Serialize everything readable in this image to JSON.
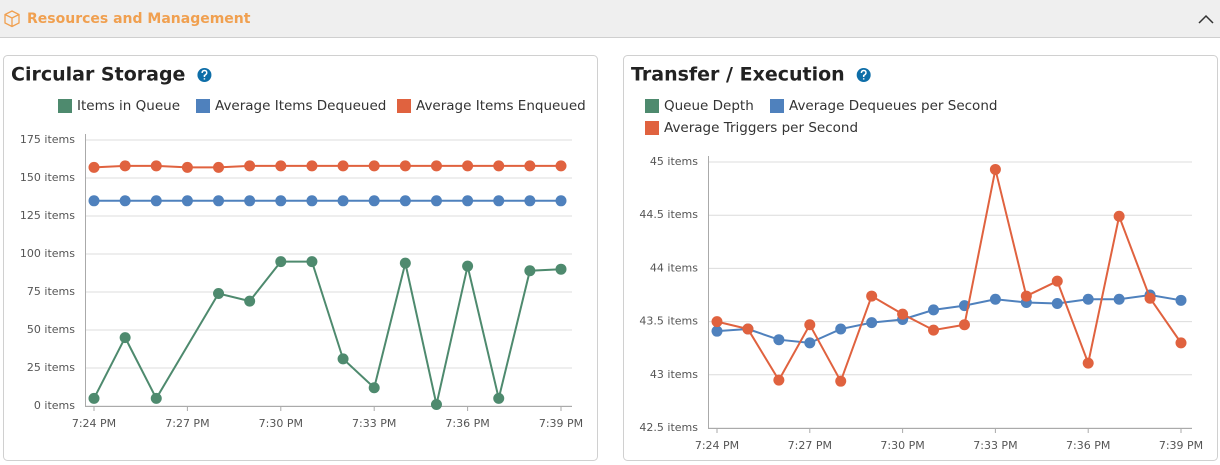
{
  "header": {
    "title": "Resources and Management"
  },
  "chart_data": [
    {
      "type": "line",
      "title": "Circular Storage",
      "categories": [
        "7:24 PM",
        null,
        null,
        "7:27 PM",
        null,
        null,
        "7:30 PM",
        null,
        null,
        "7:33 PM",
        null,
        null,
        "7:36 PM",
        null,
        null,
        "7:39 PM"
      ],
      "series": [
        {
          "name": "Items in Queue",
          "color": "#4e8a6e",
          "values": [
            5,
            45,
            5,
            null,
            74,
            69,
            95,
            95,
            31,
            12,
            94,
            1,
            92,
            5,
            89,
            90
          ]
        },
        {
          "name": "Average Items Dequeued",
          "color": "#4f81bd",
          "values": [
            135,
            135,
            135,
            135,
            135,
            135,
            135,
            135,
            135,
            135,
            135,
            135,
            135,
            135,
            135,
            135
          ]
        },
        {
          "name": "Average Items Enqueued",
          "color": "#e0623f",
          "values": [
            157,
            158,
            158,
            157,
            157,
            158,
            158,
            158,
            158,
            158,
            158,
            158,
            158,
            158,
            158,
            158
          ]
        }
      ],
      "ylim": [
        0,
        175
      ],
      "yticks": [
        {
          "value": 0,
          "label": "0 items"
        },
        {
          "value": 25,
          "label": "25 items"
        },
        {
          "value": 50,
          "label": "50 items"
        },
        {
          "value": 75,
          "label": "75 items"
        },
        {
          "value": 100,
          "label": "100 items"
        },
        {
          "value": 125,
          "label": "125 items"
        },
        {
          "value": 150,
          "label": "150 items"
        },
        {
          "value": 175,
          "label": "175 items"
        }
      ],
      "grid": true
    },
    {
      "type": "line",
      "title": "Transfer / Execution",
      "categories": [
        "7:24 PM",
        null,
        null,
        "7:27 PM",
        null,
        null,
        "7:30 PM",
        null,
        null,
        "7:33 PM",
        null,
        null,
        "7:36 PM",
        null,
        null,
        "7:39 PM"
      ],
      "series": [
        {
          "name": "Queue Depth",
          "color": "#4e8a6e",
          "values": [
            null,
            null,
            null,
            null,
            null,
            null,
            null,
            null,
            null,
            null,
            null,
            null,
            null,
            null,
            null,
            null
          ]
        },
        {
          "name": "Average Dequeues per Second",
          "color": "#4f81bd",
          "values": [
            43.41,
            43.43,
            43.33,
            43.3,
            43.43,
            43.49,
            43.52,
            43.61,
            43.65,
            43.71,
            43.68,
            43.67,
            43.71,
            43.71,
            43.75,
            43.7
          ]
        },
        {
          "name": "Average Triggers per Second",
          "color": "#e0623f",
          "values": [
            43.5,
            43.43,
            42.95,
            43.47,
            42.94,
            43.74,
            43.57,
            43.42,
            43.47,
            44.93,
            43.74,
            43.88,
            43.11,
            44.49,
            43.72,
            43.3
          ]
        }
      ],
      "ylim": [
        42.5,
        45
      ],
      "yticks": [
        {
          "value": 42.5,
          "label": "42.5 items"
        },
        {
          "value": 43,
          "label": "43 items"
        },
        {
          "value": 43.5,
          "label": "43.5 items"
        },
        {
          "value": 44,
          "label": "44 items"
        },
        {
          "value": 44.5,
          "label": "44.5 items"
        },
        {
          "value": 45,
          "label": "45 items"
        }
      ],
      "grid": true
    }
  ]
}
